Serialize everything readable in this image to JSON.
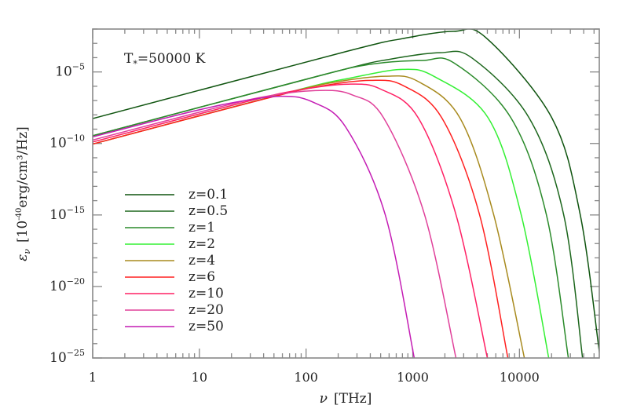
{
  "chart_data": {
    "type": "line",
    "title": "",
    "annotation": {
      "prefix": "T",
      "sub": "*",
      "rest": "=50000  K"
    },
    "xlabel": {
      "symbol": "ν",
      "unit": "[THz]"
    },
    "ylabel": {
      "symbol": "ε",
      "sub": "ν",
      "unit_pre": "[10",
      "unit_exp": "-40",
      "unit_post": "erg/cm³/Hz]"
    },
    "x_scale": "log",
    "y_scale": "log",
    "xlim": [
      1,
      56000
    ],
    "ylim": [
      1e-25,
      0.01
    ],
    "x_ticks": [
      {
        "value": 1,
        "label": "1"
      },
      {
        "value": 10,
        "label": "10"
      },
      {
        "value": 100,
        "label": "100"
      },
      {
        "value": 1000,
        "label": "1000"
      },
      {
        "value": 10000,
        "label": "10000"
      }
    ],
    "y_ticks": [
      {
        "value": 1e-05,
        "base": "10",
        "exp": "−5"
      },
      {
        "value": 1e-10,
        "base": "10",
        "exp": "−10"
      },
      {
        "value": 1e-15,
        "base": "10",
        "exp": "−15"
      },
      {
        "value": 1e-20,
        "base": "10",
        "exp": "−20"
      },
      {
        "value": 1e-25,
        "base": "10",
        "exp": "−25"
      }
    ],
    "grid": false,
    "legend_position": "lower-left",
    "series": [
      {
        "name": "z=0.1",
        "color": "#0f540f",
        "x": [
          1,
          241,
          803,
          2410,
          4820,
          20100,
          37070,
          55700
        ],
        "y": [
          5.5e-09,
          0.000275,
          0.00214,
          0.00692,
          0.00257,
          6.17e-09,
          1.07e-15,
          3.8e-25
        ]
      },
      {
        "name": "z=0.5",
        "color": "#1c661c",
        "x": [
          1,
          181,
          603,
          1808,
          3616,
          12300,
          25960,
          39000
        ],
        "y": [
          3.47e-10,
          9.77e-06,
          7.59e-05,
          0.000224,
          9.12e-05,
          6.17e-09,
          1.07e-15,
          1e-25
        ]
      },
      {
        "name": "z=1",
        "color": "#2a8a2a",
        "x": [
          1,
          122,
          408,
          1224,
          2448,
          8320,
          17870,
          28700
        ],
        "y": [
          3.47e-10,
          4.57e-06,
          3.47e-05,
          6.31e-05,
          4.17e-05,
          6.17e-09,
          1.07e-15,
          1e-25
        ]
      },
      {
        "name": "z=2",
        "color": "#33f033",
        "x": [
          1,
          80,
          267,
          800,
          1600,
          5090,
          10370,
          18800
        ],
        "y": [
          9.12e-11,
          5.13e-07,
          3.89e-06,
          1.51e-05,
          4.68e-06,
          6.17e-09,
          1.07e-15,
          1e-25
        ]
      },
      {
        "name": "z=4",
        "color": "#a88a1e",
        "x": [
          1,
          55.6,
          185,
          556,
          1112,
          2763,
          5730,
          11110
        ],
        "y": [
          9.12e-11,
          2.45e-07,
          1.91e-06,
          5.01e-06,
          2.24e-06,
          6.17e-09,
          1.07e-15,
          1e-25
        ]
      },
      {
        "name": "z=6",
        "color": "#ff2020",
        "x": [
          1,
          40,
          133,
          400,
          800,
          1872,
          4225,
          7780
        ],
        "y": [
          9.12e-11,
          1.26e-07,
          9.77e-07,
          2.57e-06,
          1.17e-06,
          6.17e-09,
          1.07e-15,
          1e-25
        ]
      },
      {
        "name": "z=10",
        "color": "#ff2064",
        "x": [
          1,
          25,
          83,
          250,
          500,
          1125,
          2540,
          5000
        ],
        "y": [
          1.26e-10,
          6.92e-08,
          5.25e-07,
          1.41e-06,
          6.31e-07,
          6.17e-09,
          1.07e-15,
          1e-25
        ]
      },
      {
        "name": "z=20",
        "color": "#e0409a",
        "x": [
          1,
          13.5,
          45,
          135,
          270,
          533,
          1288,
          2540
        ],
        "y": [
          1.74e-10,
          2.75e-08,
          2.14e-07,
          5.13e-07,
          2.51e-07,
          6.17e-09,
          1.07e-15,
          1e-25
        ]
      },
      {
        "name": "z=50",
        "color": "#c41cb4",
        "x": [
          1,
          5.8,
          19.3,
          58,
          116,
          236,
          551,
          1033
        ],
        "y": [
          2.88e-10,
          8.51e-09,
          6.46e-08,
          2e-07,
          7.76e-08,
          1.35e-09,
          1.07e-15,
          1e-25
        ]
      }
    ]
  }
}
